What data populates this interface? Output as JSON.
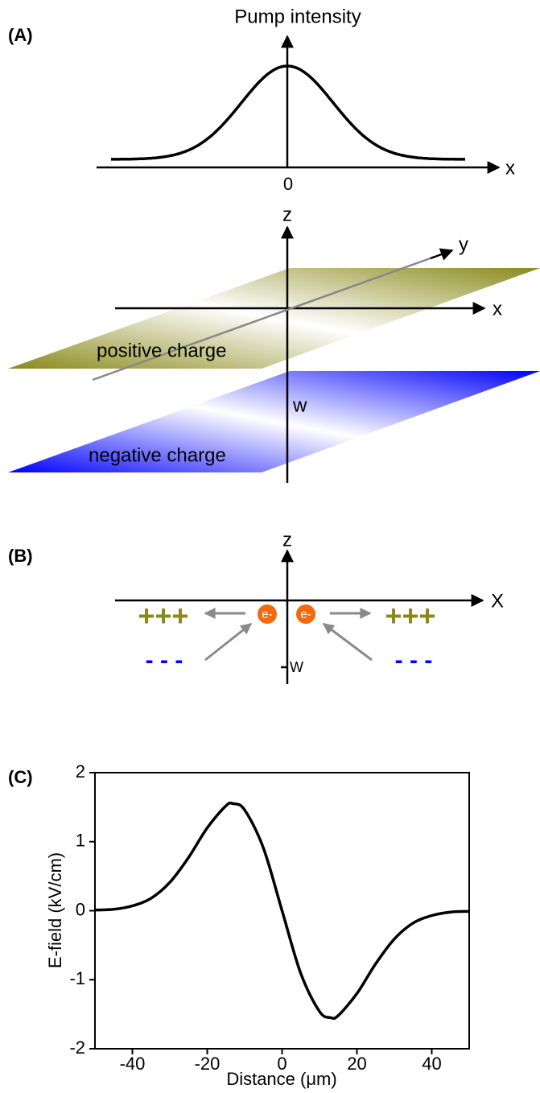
{
  "panel_a": {
    "label": "(A)",
    "y_axis": "Pump intensity",
    "x_axis": "x",
    "origin": "0"
  },
  "planes": {
    "z_axis": "z",
    "y_axis": "y",
    "x_axis": "x",
    "width": "w",
    "top_plane": "positive charge",
    "bottom_plane": "negative charge"
  },
  "panel_b": {
    "label": "(B)",
    "z_axis": "z",
    "x_axis": "X",
    "width": "W",
    "positive": "+++",
    "negative": "- - -",
    "electron": "e-"
  },
  "panel_c": {
    "label": "(C)"
  },
  "chart_data": {
    "type": "line",
    "x_label": "Distance (μm)",
    "y_label": "E-field (kV/cm)",
    "x": [
      -50,
      -45,
      -40,
      -35,
      -30,
      -25,
      -20,
      -15,
      -13,
      -10,
      -5,
      0,
      5,
      10,
      13,
      15,
      20,
      25,
      30,
      35,
      40,
      45,
      50
    ],
    "series": [
      {
        "color": "#000000",
        "values": [
          0.01,
          0.02,
          0.07,
          0.18,
          0.41,
          0.77,
          1.2,
          1.52,
          1.55,
          1.46,
          0.91,
          0,
          -0.91,
          -1.46,
          -1.55,
          -1.52,
          -1.2,
          -0.77,
          -0.41,
          -0.18,
          -0.07,
          -0.02,
          -0.01
        ]
      }
    ],
    "xlim": [
      -50,
      50
    ],
    "ylim": [
      -2,
      2
    ],
    "xticks": [
      -40,
      -20,
      0,
      20,
      40
    ],
    "yticks": [
      -2,
      -1,
      0,
      1,
      2
    ]
  }
}
